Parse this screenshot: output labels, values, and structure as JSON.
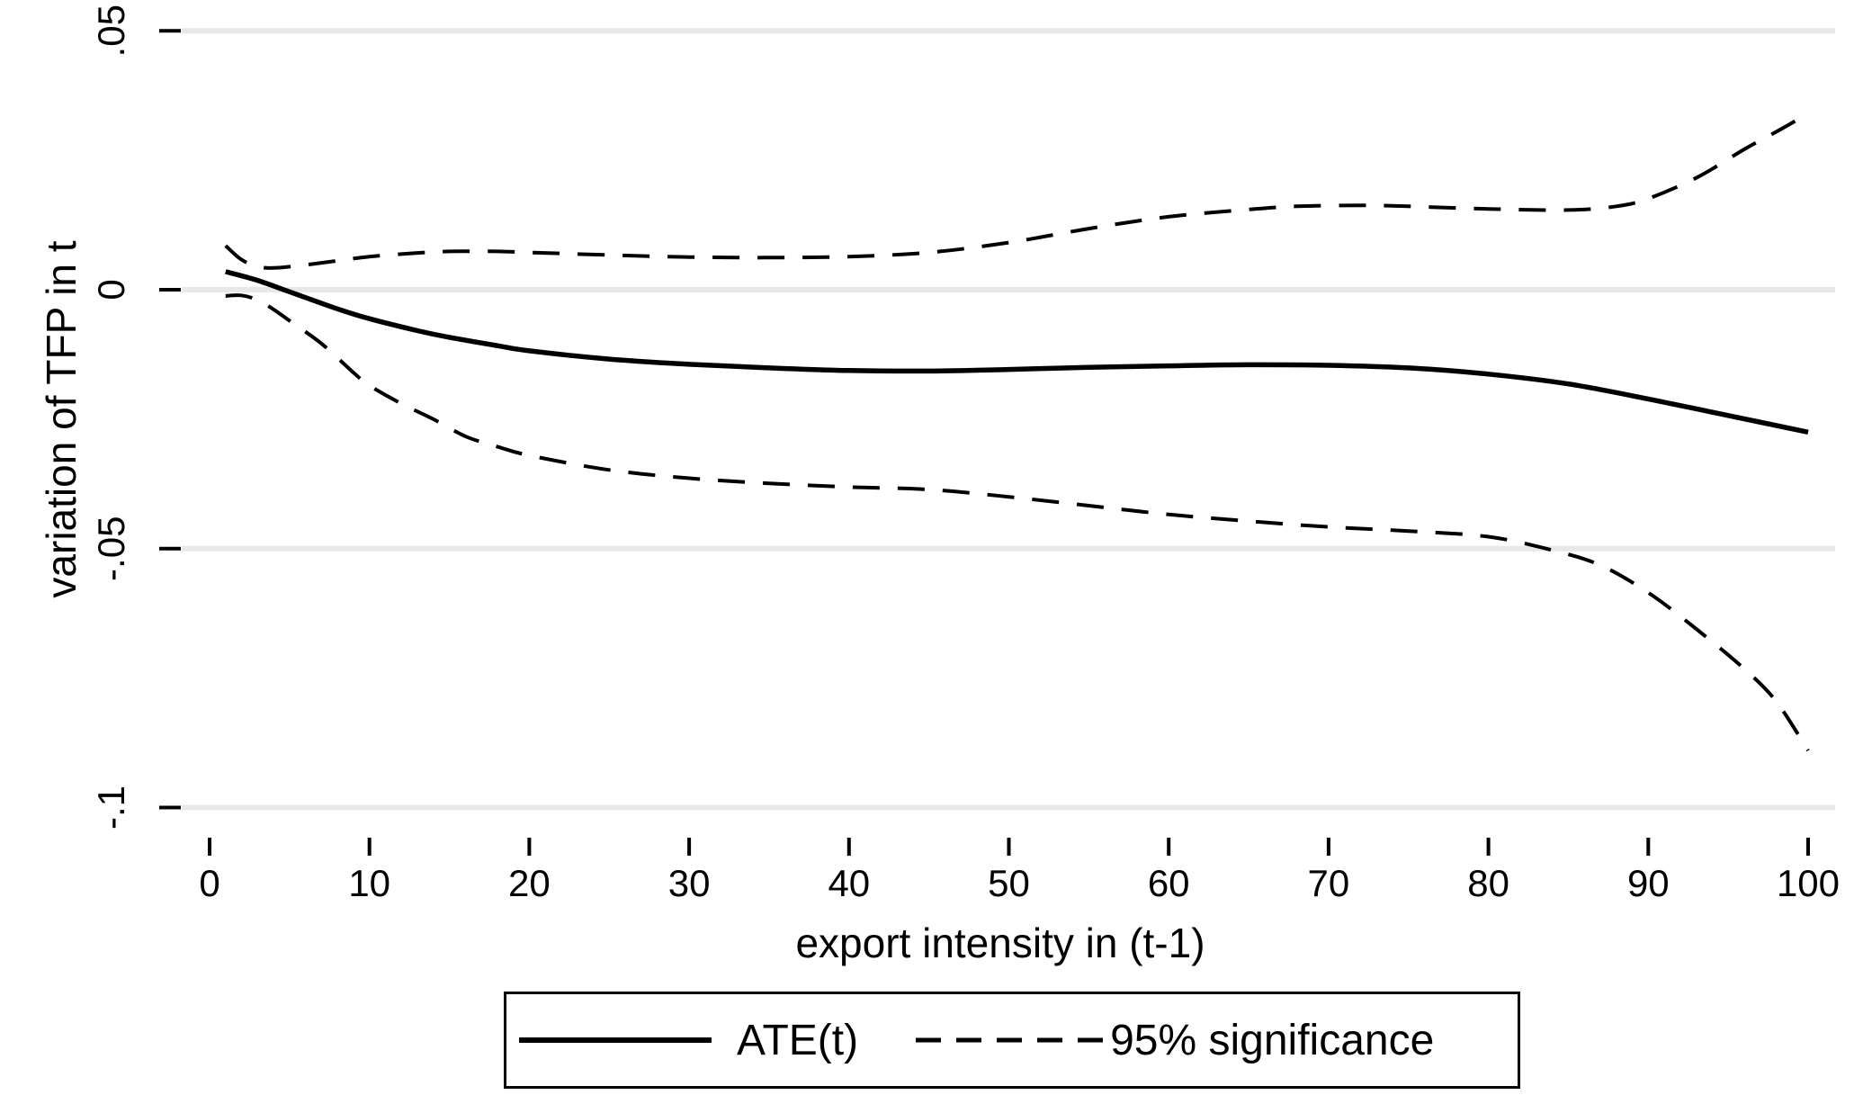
{
  "chart_data": {
    "type": "line",
    "title": "",
    "xlabel": "export intensity in (t-1)",
    "ylabel": "variation of TFP in t",
    "xlim": [
      0,
      100
    ],
    "ylim": [
      -0.1,
      0.05
    ],
    "grid": "horizontal gridlines at y ticks, light gray",
    "legend_position": "bottom-center boxed",
    "x_ticks": [
      0,
      10,
      20,
      30,
      40,
      50,
      60,
      70,
      80,
      90,
      100
    ],
    "y_ticks": [
      {
        "value": 0.05,
        "label": ".05"
      },
      {
        "value": 0,
        "label": "0"
      },
      {
        "value": -0.05,
        "label": "-.05"
      },
      {
        "value": -0.1,
        "label": "-.1"
      }
    ],
    "series": [
      {
        "name": "ATE(t)",
        "style": "solid",
        "color": "#000000",
        "points": [
          [
            1,
            0.0035
          ],
          [
            3,
            0.0018
          ],
          [
            5,
            -0.0004
          ],
          [
            8,
            -0.0037
          ],
          [
            10,
            -0.0056
          ],
          [
            13,
            -0.0079
          ],
          [
            15,
            -0.0092
          ],
          [
            18,
            -0.0108
          ],
          [
            20,
            -0.0118
          ],
          [
            25,
            -0.0134
          ],
          [
            30,
            -0.0144
          ],
          [
            35,
            -0.0151
          ],
          [
            40,
            -0.0156
          ],
          [
            45,
            -0.0157
          ],
          [
            50,
            -0.0154
          ],
          [
            55,
            -0.015
          ],
          [
            60,
            -0.0147
          ],
          [
            65,
            -0.0145
          ],
          [
            70,
            -0.0146
          ],
          [
            75,
            -0.0151
          ],
          [
            80,
            -0.0163
          ],
          [
            85,
            -0.0182
          ],
          [
            90,
            -0.0211
          ],
          [
            95,
            -0.0243
          ],
          [
            100,
            -0.0275
          ]
        ]
      },
      {
        "name": "95% significance (upper band)",
        "style": "dashed",
        "color": "#000000",
        "points": [
          [
            1,
            0.0085
          ],
          [
            2,
            0.0058
          ],
          [
            3,
            0.0045
          ],
          [
            4,
            0.0042
          ],
          [
            6,
            0.0048
          ],
          [
            8,
            0.0056
          ],
          [
            10,
            0.0064
          ],
          [
            13,
            0.0071
          ],
          [
            15,
            0.0074
          ],
          [
            18,
            0.0074
          ],
          [
            20,
            0.0072
          ],
          [
            25,
            0.0067
          ],
          [
            30,
            0.0063
          ],
          [
            35,
            0.0062
          ],
          [
            40,
            0.0064
          ],
          [
            45,
            0.0072
          ],
          [
            50,
            0.0091
          ],
          [
            55,
            0.0118
          ],
          [
            60,
            0.0141
          ],
          [
            65,
            0.0155
          ],
          [
            68,
            0.0161
          ],
          [
            72,
            0.0163
          ],
          [
            75,
            0.0161
          ],
          [
            80,
            0.0156
          ],
          [
            85,
            0.0154
          ],
          [
            88,
            0.0161
          ],
          [
            90,
            0.0176
          ],
          [
            93,
            0.0216
          ],
          [
            96,
            0.0271
          ],
          [
            98,
            0.0305
          ],
          [
            100,
            0.034
          ]
        ]
      },
      {
        "name": "95% significance (lower band)",
        "style": "dashed",
        "color": "#000000",
        "points": [
          [
            1,
            -0.0012
          ],
          [
            2,
            -0.0011
          ],
          [
            3,
            -0.002
          ],
          [
            4,
            -0.0038
          ],
          [
            5,
            -0.006
          ],
          [
            7,
            -0.0104
          ],
          [
            9,
            -0.016
          ],
          [
            10,
            -0.0185
          ],
          [
            12,
            -0.022
          ],
          [
            14,
            -0.025
          ],
          [
            16,
            -0.0283
          ],
          [
            18,
            -0.0303
          ],
          [
            20,
            -0.032
          ],
          [
            25,
            -0.0348
          ],
          [
            30,
            -0.0364
          ],
          [
            35,
            -0.0374
          ],
          [
            40,
            -0.0381
          ],
          [
            45,
            -0.0386
          ],
          [
            50,
            -0.04
          ],
          [
            55,
            -0.0417
          ],
          [
            60,
            -0.0434
          ],
          [
            65,
            -0.0447
          ],
          [
            70,
            -0.0458
          ],
          [
            75,
            -0.0466
          ],
          [
            80,
            -0.0477
          ],
          [
            84,
            -0.0503
          ],
          [
            87,
            -0.0532
          ],
          [
            90,
            -0.0585
          ],
          [
            93,
            -0.0655
          ],
          [
            96,
            -0.0732
          ],
          [
            98,
            -0.0795
          ],
          [
            100,
            -0.089
          ]
        ]
      }
    ],
    "legend": [
      {
        "label": "ATE(t)",
        "style": "solid"
      },
      {
        "label": "95% significance",
        "style": "dashed"
      }
    ]
  },
  "colors": {
    "line": "#000000",
    "grid": "#e8e8e8",
    "background": "#ffffff",
    "text": "#000000"
  }
}
